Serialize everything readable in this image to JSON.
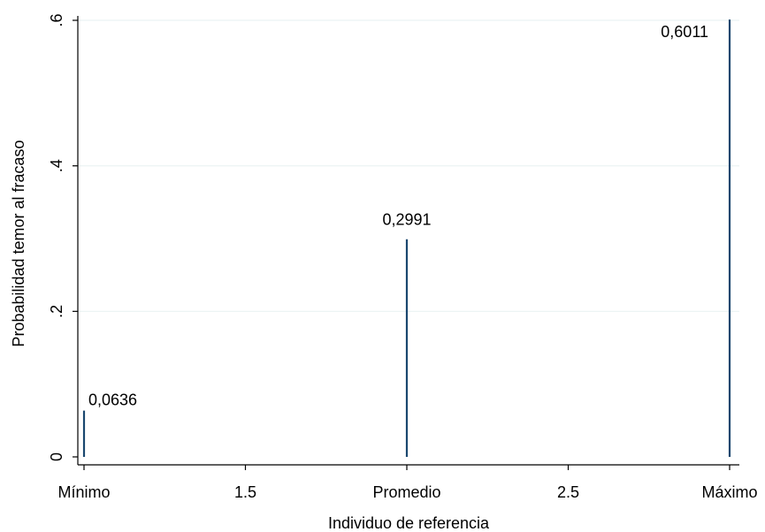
{
  "chart_data": {
    "type": "bar",
    "style": "spike",
    "xlabel": "Individuo de referencia",
    "ylabel": "Probabilidad temor al fracaso",
    "xlim": [
      1,
      3
    ],
    "ylim": [
      0,
      0.6
    ],
    "x_ticks": [
      {
        "value": 1,
        "label": "Mínimo"
      },
      {
        "value": 1.5,
        "label": "1.5"
      },
      {
        "value": 2,
        "label": "Promedio"
      },
      {
        "value": 2.5,
        "label": "2.5"
      },
      {
        "value": 3,
        "label": "Máximo"
      }
    ],
    "y_ticks": [
      {
        "value": 0,
        "label": "0"
      },
      {
        "value": 0.2,
        "label": ".2"
      },
      {
        "value": 0.4,
        "label": ".4"
      },
      {
        "value": 0.6,
        "label": ".6"
      }
    ],
    "points": [
      {
        "x": 1,
        "y": 0.0636,
        "label": "0,0636",
        "label_pos": "right"
      },
      {
        "x": 2,
        "y": 0.2991,
        "label": "0,2991",
        "label_pos": "above"
      },
      {
        "x": 3,
        "y": 0.6011,
        "label": "0,6011",
        "label_pos": "left"
      }
    ],
    "grid": true,
    "colors": {
      "spike": "#1a476f",
      "grid": "#eaf2f3",
      "axis": "#000000"
    }
  }
}
